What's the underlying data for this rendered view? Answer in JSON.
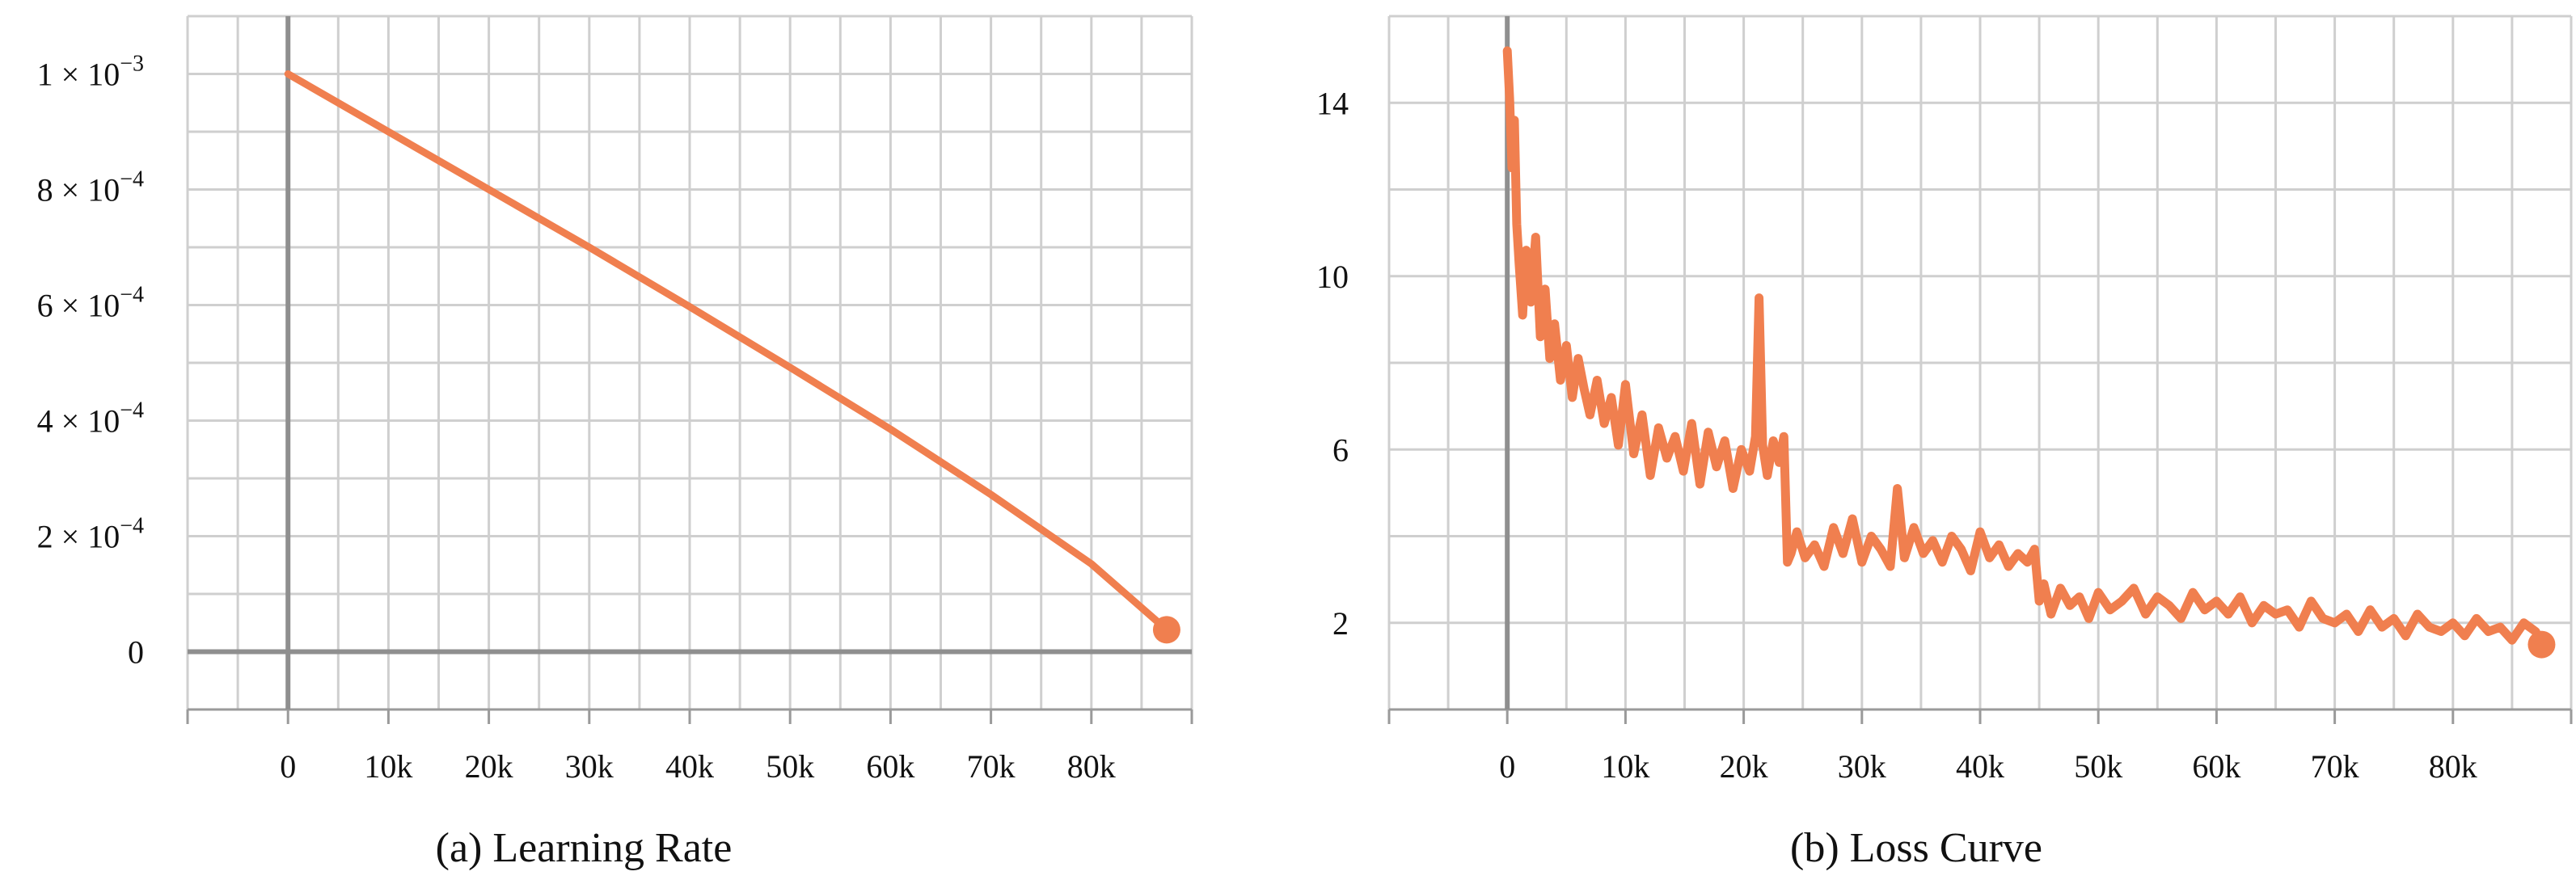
{
  "chart_data": [
    {
      "type": "line",
      "caption": "(a) Learning Rate",
      "title": "",
      "xlabel": "",
      "ylabel": "",
      "xlim": [
        -10000,
        90000
      ],
      "ylim": [
        -0.0001,
        0.0011
      ],
      "x_ticks": [
        {
          "value": 0,
          "label": "0"
        },
        {
          "value": 10000,
          "label": "10k"
        },
        {
          "value": 20000,
          "label": "20k"
        },
        {
          "value": 30000,
          "label": "30k"
        },
        {
          "value": 40000,
          "label": "40k"
        },
        {
          "value": 50000,
          "label": "50k"
        },
        {
          "value": 60000,
          "label": "60k"
        },
        {
          "value": 70000,
          "label": "70k"
        },
        {
          "value": 80000,
          "label": "80k"
        }
      ],
      "y_ticks": [
        {
          "value": 0,
          "mantissa": "0",
          "exponent": ""
        },
        {
          "value": 0.0002,
          "mantissa": "2 × 10",
          "exponent": "−4"
        },
        {
          "value": 0.0004,
          "mantissa": "4 × 10",
          "exponent": "−4"
        },
        {
          "value": 0.0006,
          "mantissa": "6 × 10",
          "exponent": "−4"
        },
        {
          "value": 0.0008,
          "mantissa": "8 × 10",
          "exponent": "−4"
        },
        {
          "value": 0.001,
          "mantissa": "1 × 10",
          "exponent": "−3"
        }
      ],
      "grid": true,
      "series": [
        {
          "color": "#f07f4f",
          "x": [
            0,
            10000,
            20000,
            30000,
            40000,
            50000,
            60000,
            70000,
            80000,
            87500
          ],
          "y": [
            0.001,
            0.0009,
            0.0008,
            0.0007,
            0.000597,
            0.000492,
            0.000385,
            0.000272,
            0.000152,
            3.8e-05
          ],
          "end_marker": true
        }
      ]
    },
    {
      "type": "line",
      "caption": "(b)  Loss Curve",
      "title": "",
      "xlabel": "",
      "ylabel": "",
      "xlim": [
        -10000,
        90000
      ],
      "ylim": [
        0,
        16
      ],
      "x_ticks": [
        {
          "value": 0,
          "label": "0"
        },
        {
          "value": 10000,
          "label": "10k"
        },
        {
          "value": 20000,
          "label": "20k"
        },
        {
          "value": 30000,
          "label": "30k"
        },
        {
          "value": 40000,
          "label": "40k"
        },
        {
          "value": 50000,
          "label": "50k"
        },
        {
          "value": 60000,
          "label": "60k"
        },
        {
          "value": 70000,
          "label": "70k"
        },
        {
          "value": 80000,
          "label": "80k"
        }
      ],
      "y_ticks": [
        {
          "value": 2,
          "label": "2"
        },
        {
          "value": 6,
          "label": "6"
        },
        {
          "value": 10,
          "label": "10"
        },
        {
          "value": 14,
          "label": "14"
        }
      ],
      "grid": true,
      "series": [
        {
          "color": "#f07f4f",
          "x": [
            0,
            200,
            400,
            600,
            800,
            1000,
            1300,
            1600,
            2000,
            2400,
            2800,
            3200,
            3600,
            4000,
            4500,
            5000,
            5500,
            6000,
            6500,
            7000,
            7600,
            8200,
            8800,
            9400,
            10000,
            10700,
            11400,
            12100,
            12800,
            13500,
            14200,
            14900,
            15600,
            16300,
            17000,
            17700,
            18400,
            19100,
            19800,
            20500,
            21000,
            21300,
            21600,
            22000,
            22500,
            23000,
            23400,
            23700,
            24000,
            24500,
            25200,
            26000,
            26800,
            27600,
            28400,
            29200,
            30000,
            30800,
            31600,
            32400,
            33000,
            33600,
            34400,
            35200,
            36000,
            36800,
            37600,
            38400,
            39200,
            40000,
            40800,
            41600,
            42400,
            43200,
            44000,
            44600,
            45000,
            45400,
            46000,
            46800,
            47600,
            48400,
            49200,
            50000,
            51000,
            52000,
            53000,
            54000,
            55000,
            56000,
            57000,
            58000,
            59000,
            60000,
            61000,
            62000,
            63000,
            64000,
            65000,
            66000,
            67000,
            68000,
            69000,
            70000,
            71000,
            72000,
            73000,
            74000,
            75000,
            76000,
            77000,
            78000,
            79000,
            80000,
            81000,
            82000,
            83000,
            84000,
            85000,
            86000,
            87000,
            87500
          ],
          "y": [
            15.2,
            14.1,
            12.5,
            13.6,
            11.2,
            10.3,
            9.1,
            10.6,
            9.4,
            10.9,
            8.6,
            9.7,
            8.1,
            8.9,
            7.6,
            8.4,
            7.2,
            8.1,
            7.4,
            6.8,
            7.6,
            6.6,
            7.2,
            6.1,
            7.5,
            5.9,
            6.8,
            5.4,
            6.5,
            5.8,
            6.3,
            5.5,
            6.6,
            5.2,
            6.4,
            5.6,
            6.2,
            5.1,
            6.0,
            5.5,
            6.3,
            9.5,
            6.1,
            5.4,
            6.2,
            5.7,
            6.3,
            3.4,
            3.6,
            4.1,
            3.5,
            3.8,
            3.3,
            4.2,
            3.6,
            4.4,
            3.4,
            4.0,
            3.7,
            3.3,
            5.1,
            3.5,
            4.2,
            3.6,
            3.9,
            3.4,
            4.0,
            3.7,
            3.2,
            4.1,
            3.5,
            3.8,
            3.3,
            3.6,
            3.4,
            3.7,
            2.5,
            2.9,
            2.2,
            2.8,
            2.4,
            2.6,
            2.1,
            2.7,
            2.3,
            2.5,
            2.8,
            2.2,
            2.6,
            2.4,
            2.1,
            2.7,
            2.3,
            2.5,
            2.2,
            2.6,
            2.0,
            2.4,
            2.2,
            2.3,
            1.9,
            2.5,
            2.1,
            2.0,
            2.2,
            1.8,
            2.3,
            1.9,
            2.1,
            1.7,
            2.2,
            1.9,
            1.8,
            2.0,
            1.7,
            2.1,
            1.8,
            1.9,
            1.6,
            2.0,
            1.8,
            1.5
          ],
          "end_marker": true
        }
      ]
    }
  ]
}
